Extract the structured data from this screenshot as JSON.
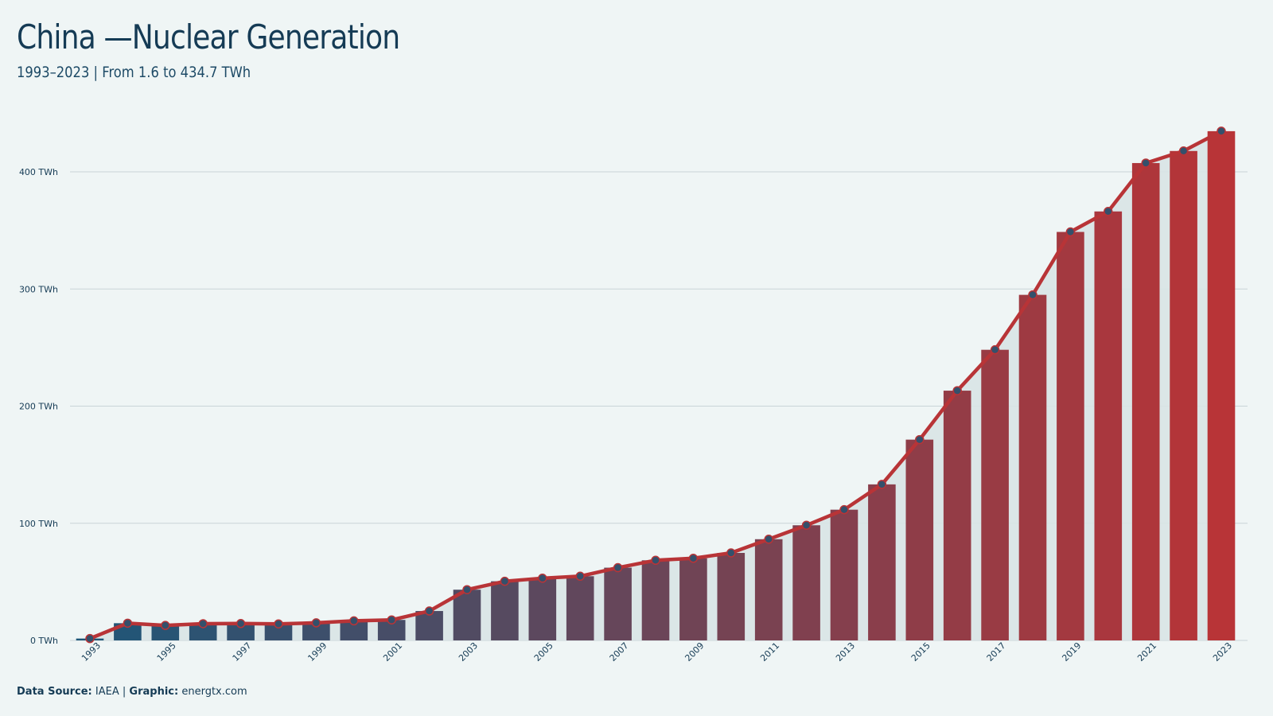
{
  "title": "China —Nuclear Generation",
  "subtitle": "1993–2023 | From 1.6 to 434.7 TWh",
  "footer": {
    "source_label": "Data Source:",
    "source_value": "IAEA",
    "separator": "|",
    "graphic_label": "Graphic:",
    "graphic_value": "energtx.com"
  },
  "colors": {
    "background": "#eff5f5",
    "bar_start": "#1e5678",
    "bar_end": "#b83437",
    "line": "#b83437",
    "marker": "#34506b",
    "area": "#d8e4e6",
    "grid": "#c9d4d8",
    "text": "#153b55"
  },
  "chart_data": {
    "type": "bar",
    "overlay": "line-with-markers",
    "x": [
      1993,
      1994,
      1995,
      1996,
      1997,
      1998,
      1999,
      2000,
      2001,
      2002,
      2003,
      2004,
      2005,
      2006,
      2007,
      2008,
      2009,
      2010,
      2011,
      2012,
      2013,
      2014,
      2015,
      2016,
      2017,
      2018,
      2019,
      2020,
      2021,
      2022,
      2023
    ],
    "values": [
      1.6,
      14.7,
      12.8,
      14.3,
      14.4,
      14.1,
      15.0,
      16.7,
      17.5,
      25.1,
      43.3,
      50.5,
      53.1,
      54.8,
      62.1,
      68.4,
      70.1,
      74.7,
      86.4,
      98.3,
      111.6,
      133.2,
      171.4,
      213.2,
      248.1,
      295.0,
      348.7,
      366.2,
      407.5,
      417.8,
      434.7
    ],
    "x_tick_labels": [
      "1993",
      "1995",
      "1997",
      "1999",
      "2001",
      "2003",
      "2005",
      "2007",
      "2009",
      "2011",
      "2013",
      "2015",
      "2017",
      "2019",
      "2021",
      "2023"
    ],
    "y_ticks": [
      0,
      100,
      200,
      300,
      400
    ],
    "y_tick_labels": [
      "0 TWh",
      "100 TWh",
      "200 TWh",
      "300 TWh",
      "400 TWh"
    ],
    "ylim": [
      0,
      450
    ],
    "grid": "horizontal",
    "legend": "none",
    "unit": "TWh"
  }
}
